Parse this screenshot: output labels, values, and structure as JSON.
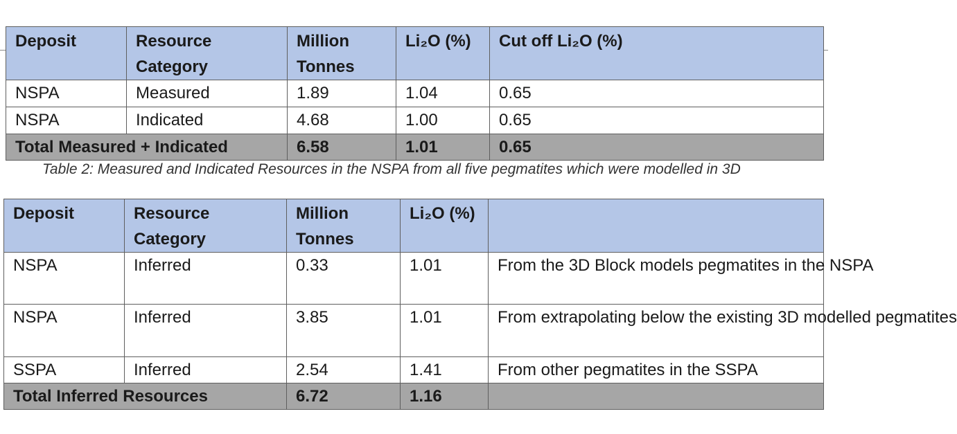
{
  "table1": {
    "headers": [
      "Deposit",
      "Resource Category",
      "Million Tonnes",
      "Li₂O (%)",
      "Cut off Li₂O (%)"
    ],
    "rows": [
      [
        "NSPA",
        "Measured",
        "1.89",
        "1.04",
        "0.65"
      ],
      [
        "NSPA",
        "Indicated",
        "4.68",
        "1.00",
        "0.65"
      ]
    ],
    "total": {
      "label": "Total Measured + Indicated",
      "tonnes": "6.58",
      "li2o": "1.01",
      "cutoff": "0.65"
    }
  },
  "caption": "Table 2: Measured and Indicated Resources in the NSPA from all five pegmatites which were modelled in 3D",
  "table2": {
    "headers": [
      "Deposit",
      "Resource Category",
      "Million Tonnes",
      "Li₂O (%)",
      ""
    ],
    "rows": [
      [
        "NSPA",
        "Inferred",
        "0.33",
        "1.01",
        "From the 3D Block models pegmatites in the NSPA"
      ],
      [
        "NSPA",
        "Inferred",
        "3.85",
        "1.01",
        "From extrapolating below the existing 3D modelled pegmatites"
      ],
      [
        "SSPA",
        "Inferred",
        "2.54",
        "1.41",
        "From other pegmatites in the SSPA"
      ]
    ],
    "total": {
      "label": "Total Inferred Resources",
      "tonnes": "6.72",
      "li2o": "1.16",
      "note": ""
    }
  },
  "colors": {
    "header": "#b4c6e7",
    "total": "#a6a6a6",
    "border": "#5e5e5e"
  }
}
